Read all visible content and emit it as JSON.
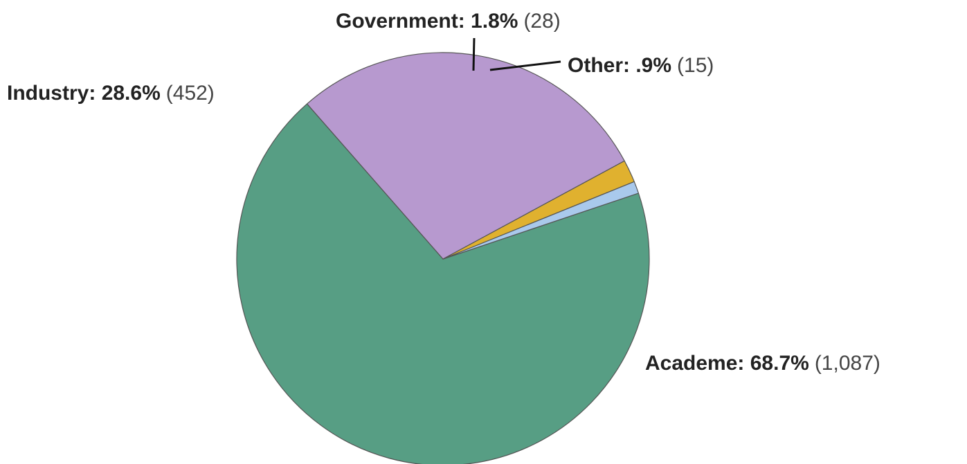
{
  "chart_data": {
    "type": "pie",
    "title": "",
    "slices": [
      {
        "name": "Academe",
        "percent_label": "68.7%",
        "count_label": "(1,087)",
        "value": 1087,
        "color": "#579E84"
      },
      {
        "name": "Industry",
        "percent_label": "28.6%",
        "count_label": "(452)",
        "value": 452,
        "color": "#B799CF"
      },
      {
        "name": "Government",
        "percent_label": "1.8%",
        "count_label": "(28)",
        "value": 28,
        "color": "#E0B12F"
      },
      {
        "name": "Other",
        "percent_label": ".9%",
        "count_label": "(15)",
        "value": 15,
        "color": "#A9C9EC"
      }
    ],
    "legend": "none",
    "slice_edge_color": "#555555"
  }
}
